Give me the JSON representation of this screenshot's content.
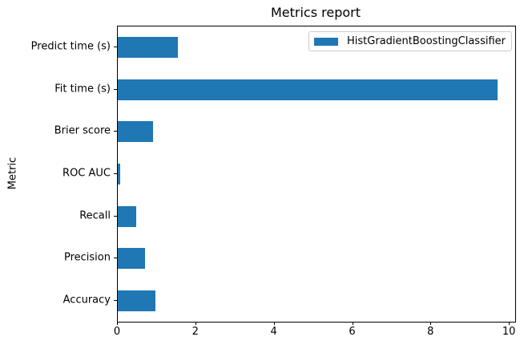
{
  "chart_data": {
    "type": "bar",
    "orientation": "horizontal",
    "title": "Metrics report",
    "xlabel": "",
    "ylabel": "Metric",
    "categories": [
      "Predict time (s)",
      "Fit time (s)",
      "Brier score",
      "ROC AUC",
      "Recall",
      "Precision",
      "Accuracy"
    ],
    "series": [
      {
        "name": "HistGradientBoostingClassifier",
        "color": "#1f77b4",
        "values": [
          1.53,
          9.68,
          0.89,
          0.06,
          0.46,
          0.7,
          0.95
        ]
      }
    ],
    "xlim": [
      0,
      10.14
    ],
    "xticks": [
      0,
      2,
      4,
      6,
      8,
      10
    ],
    "grid": false,
    "legend": {
      "position": "upper right",
      "border_color": "#cccccc"
    }
  }
}
